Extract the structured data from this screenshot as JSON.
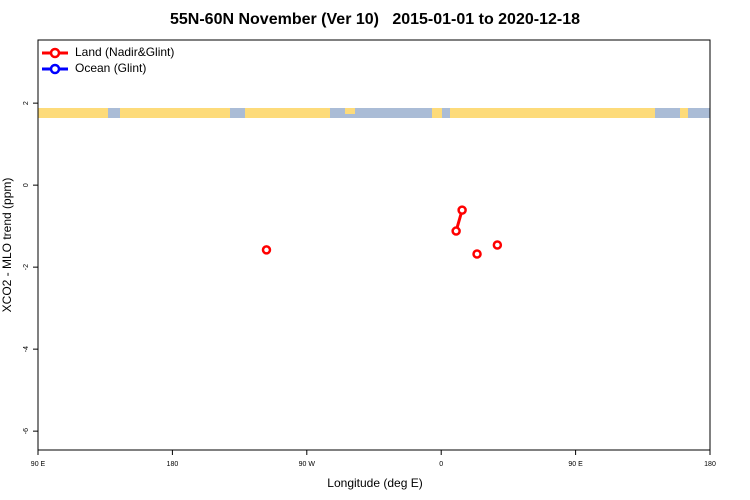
{
  "chart_data": {
    "type": "line",
    "title": "55N-60N November (Ver 10)   2015-01-01 to 2020-12-18",
    "x_label": "Longitude (deg E)",
    "y_label": "XCO2 - MLO trend (ppm)",
    "xlim": [
      90,
      540
    ],
    "xticks": [
      {
        "value": 90,
        "label": "90 E"
      },
      {
        "value": 180,
        "label": "180"
      },
      {
        "value": 270,
        "label": "90 W"
      },
      {
        "value": 360,
        "label": "0"
      },
      {
        "value": 450,
        "label": "90 E"
      },
      {
        "value": 540,
        "label": "180"
      }
    ],
    "ylim": [
      -6.46,
      3.54
    ],
    "yticks": [
      2,
      0,
      -2,
      -4,
      -6
    ],
    "legend": "top-left",
    "series": [
      {
        "name": "Land (Nadir&Glint)",
        "color": "#ff0000",
        "x": [
          243,
          370,
          374,
          384,
          397.6
        ],
        "values": [
          -1.58,
          -1.12,
          -0.61,
          -1.68,
          -1.46
        ]
      },
      {
        "name": "Ocean (Glint)",
        "color": "#0000ff",
        "x": [],
        "values": []
      }
    ]
  }
}
